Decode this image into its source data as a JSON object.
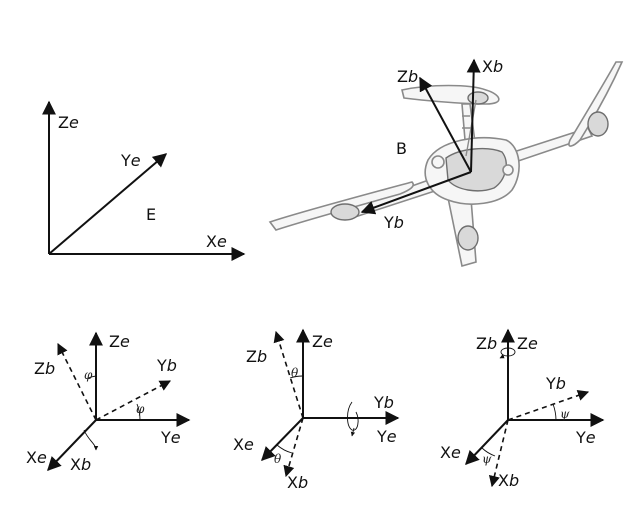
{
  "figure": {
    "earth_frame": {
      "frame_label": "E",
      "axes": {
        "z": {
          "letter": "Z",
          "sub": "e"
        },
        "y": {
          "letter": "Y",
          "sub": "e"
        },
        "x": {
          "letter": "X",
          "sub": "e"
        }
      }
    },
    "body_frame": {
      "frame_label": "B",
      "axes": {
        "z": {
          "letter": "Z",
          "sub": "b"
        },
        "x": {
          "letter": "X",
          "sub": "b"
        },
        "y": {
          "letter": "Y",
          "sub": "b"
        }
      }
    },
    "roll_panel": {
      "axes": {
        "ze": {
          "letter": "Z",
          "sub": "e"
        },
        "zb": {
          "letter": "Z",
          "sub": "b"
        },
        "yb": {
          "letter": "Y",
          "sub": "b"
        },
        "ye": {
          "letter": "Y",
          "sub": "e"
        },
        "xe": {
          "letter": "X",
          "sub": "e"
        },
        "xb": {
          "letter": "X",
          "sub": "b"
        }
      },
      "angle": "φ"
    },
    "pitch_panel": {
      "axes": {
        "zb": {
          "letter": "Z",
          "sub": "b"
        },
        "ze": {
          "letter": "Z",
          "sub": "e"
        },
        "yb": {
          "letter": "Y",
          "sub": "b"
        },
        "ye": {
          "letter": "Y",
          "sub": "e"
        },
        "xe": {
          "letter": "X",
          "sub": "e"
        },
        "xb": {
          "letter": "X",
          "sub": "b"
        }
      },
      "angle": "θ"
    },
    "yaw_panel": {
      "axes": {
        "zb": {
          "letter": "Z",
          "sub": "b"
        },
        "ze": {
          "letter": "Z",
          "sub": "e"
        },
        "yb": {
          "letter": "Y",
          "sub": "b"
        },
        "ye": {
          "letter": "Y",
          "sub": "e"
        },
        "xe": {
          "letter": "X",
          "sub": "e"
        },
        "xb": {
          "letter": "X",
          "sub": "b"
        }
      },
      "angle": "ψ"
    }
  }
}
